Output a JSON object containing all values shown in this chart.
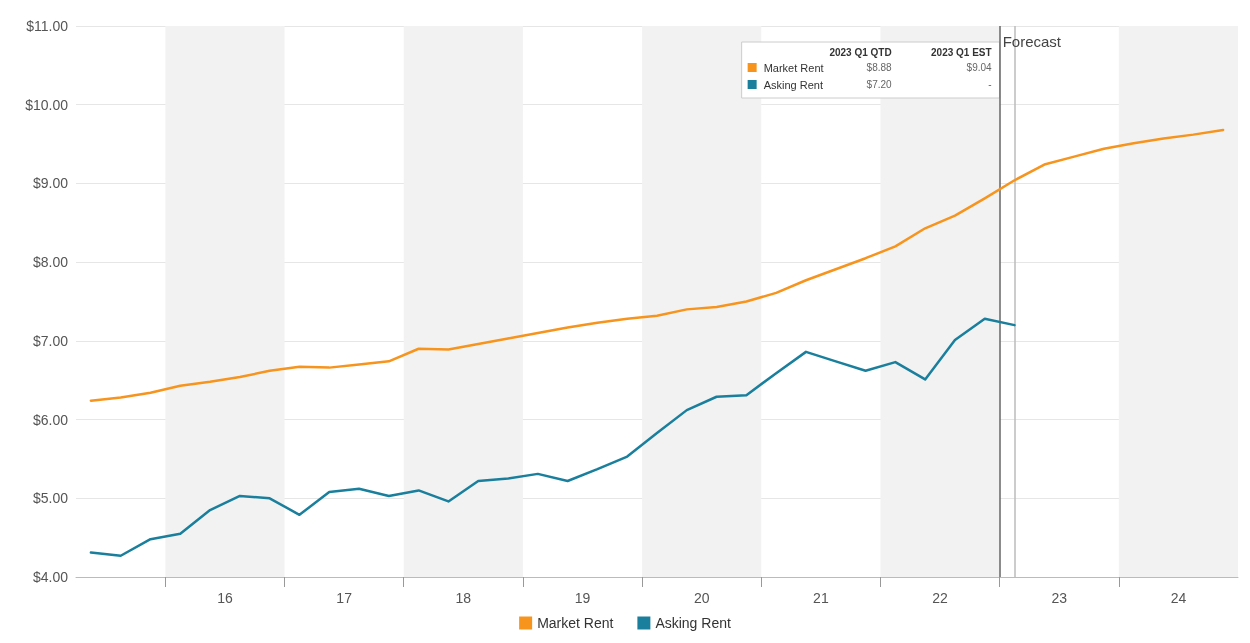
{
  "chart_data": {
    "type": "line",
    "x": [
      14.875,
      15.125,
      15.375,
      15.625,
      15.875,
      16.125,
      16.375,
      16.625,
      16.875,
      17.125,
      17.375,
      17.625,
      17.875,
      18.125,
      18.375,
      18.625,
      18.875,
      19.125,
      19.375,
      19.625,
      19.875,
      20.125,
      20.375,
      20.625,
      20.875,
      21.125,
      21.375,
      21.625,
      21.875,
      22.125,
      22.375,
      22.625,
      22.875,
      23.125,
      23.375,
      23.625,
      23.875,
      24.125,
      24.375
    ],
    "series": [
      {
        "name": "Market Rent",
        "color": "#f7941d",
        "values": [
          6.24,
          6.28,
          6.34,
          6.43,
          6.48,
          6.54,
          6.62,
          6.67,
          6.66,
          6.7,
          6.74,
          6.9,
          6.89,
          6.96,
          7.03,
          7.1,
          7.17,
          7.23,
          7.28,
          7.32,
          7.4,
          7.43,
          7.5,
          7.61,
          7.77,
          7.91,
          8.05,
          8.2,
          8.43,
          8.59,
          8.81,
          9.04,
          9.24,
          9.34,
          9.44,
          9.51,
          9.57,
          9.62,
          9.68
        ]
      },
      {
        "name": "Asking Rent",
        "color": "#1a7f9c",
        "values": [
          4.31,
          4.27,
          4.48,
          4.55,
          4.85,
          5.03,
          5.0,
          4.79,
          5.08,
          5.12,
          5.03,
          5.1,
          4.96,
          5.22,
          5.25,
          5.31,
          5.22,
          5.37,
          5.53,
          5.83,
          6.12,
          6.29,
          6.31,
          6.59,
          6.86,
          6.74,
          6.62,
          6.73,
          6.51,
          7.01,
          7.28,
          7.2,
          null,
          null,
          null,
          null,
          null,
          null,
          null
        ]
      }
    ],
    "xlim": [
      14.75,
      24.5
    ],
    "xticks": [
      {
        "value": 15.5,
        "label": null
      },
      16,
      {
        "value": 16.5,
        "label": null
      },
      17,
      {
        "value": 17.5,
        "label": null
      },
      18,
      {
        "value": 18.5,
        "label": null
      },
      19,
      {
        "value": 19.5,
        "label": null
      },
      20,
      {
        "value": 20.5,
        "label": null
      },
      21,
      {
        "value": 21.5,
        "label": null
      },
      22,
      {
        "value": 22.5,
        "label": null
      },
      23,
      {
        "value": 23.5,
        "label": null
      },
      24
    ],
    "ylim": [
      4,
      11
    ],
    "yticks": [
      {
        "value": 4,
        "label": "$4.00"
      },
      {
        "value": 5,
        "label": "$5.00"
      },
      {
        "value": 6,
        "label": "$6.00"
      },
      {
        "value": 7,
        "label": "$7.00"
      },
      {
        "value": 8,
        "label": "$8.00"
      },
      {
        "value": 9,
        "label": "$9.00"
      },
      {
        "value": 10,
        "label": "$10.00"
      },
      {
        "value": 11,
        "label": "$11.00"
      }
    ],
    "bands": [
      {
        "axis": "x",
        "from": 15.5,
        "to": 16.5,
        "color": "#f2f2f2"
      },
      {
        "axis": "x",
        "from": 17.5,
        "to": 18.5,
        "color": "#f2f2f2"
      },
      {
        "axis": "x",
        "from": 19.5,
        "to": 20.5,
        "color": "#f2f2f2"
      },
      {
        "axis": "x",
        "from": 21.5,
        "to": 22.5,
        "color": "#f2f2f2"
      },
      {
        "axis": "x",
        "from": 23.5,
        "to": 24.5,
        "color": "#f2f2f2"
      }
    ],
    "ref_lines": [
      {
        "axis": "x",
        "value": 22.5,
        "label": "Forecast",
        "color": "#666666"
      },
      {
        "axis": "x",
        "value": 22.625,
        "color": "#bbbbbb"
      }
    ],
    "annotations": [
      "2023 Q1 QTD",
      "2023 Q1 EST",
      "$8.88",
      "$9.04",
      "$7.20",
      "-"
    ],
    "grid": "y",
    "legend": "bottom",
    "marker": "none",
    "line_style": "solid"
  }
}
